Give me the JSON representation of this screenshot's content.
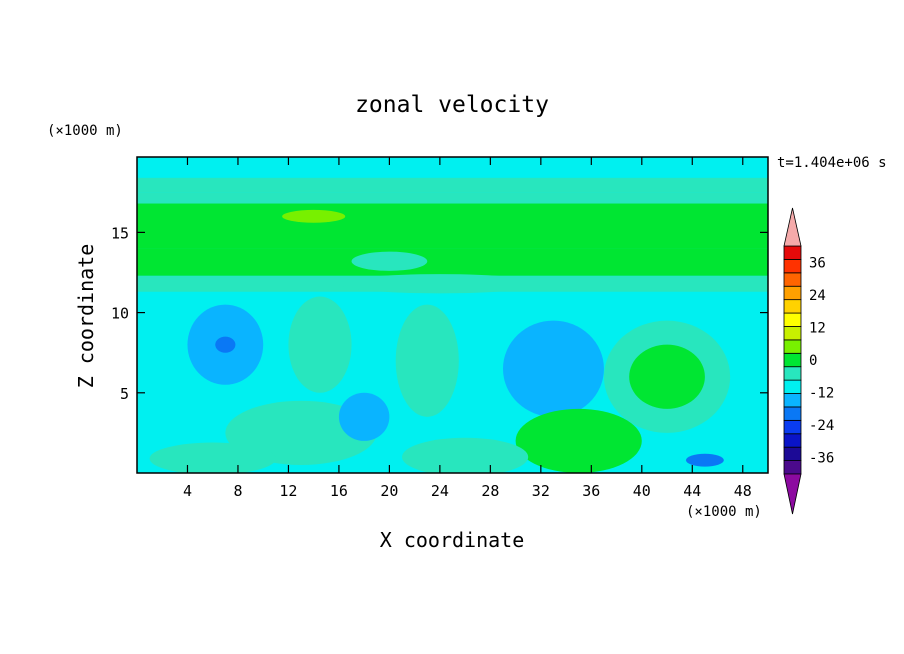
{
  "chart_data": {
    "type": "heatmap",
    "title": "zonal velocity",
    "xlabel": "X coordinate",
    "ylabel": "Z coordinate",
    "x_unit": "(×1000 m)",
    "y_unit": "(×1000 m)",
    "time_label": "t=1.404e+06 s",
    "xlim": [
      0,
      50
    ],
    "ylim": [
      0,
      19.7
    ],
    "x_ticks": [
      4,
      8,
      12,
      16,
      20,
      24,
      28,
      32,
      36,
      40,
      44,
      48
    ],
    "y_ticks": [
      5,
      10,
      15
    ],
    "colorbar": {
      "tick_labels": [
        "36",
        "24",
        "12",
        "0",
        "-12",
        "-24",
        "-36"
      ],
      "tick_values": [
        36,
        24,
        12,
        0,
        -12,
        -24,
        -36
      ],
      "range": [
        -42,
        42
      ],
      "step": 6,
      "colors": [
        "#4b0a8c",
        "#1c0a96",
        "#0a14c8",
        "#0a3cf0",
        "#0a78f5",
        "#0ab4ff",
        "#00f0f0",
        "#28e6be",
        "#00e632",
        "#78f000",
        "#c8f000",
        "#ffff00",
        "#ffd200",
        "#ffa000",
        "#ff6400",
        "#ff3200",
        "#e60a0a"
      ],
      "under_color": "#8c0aa0",
      "over_color": "#f5aaaa"
    },
    "features": [
      {
        "kind": "band",
        "z_range": [
          0,
          19.7
        ],
        "u": -3
      },
      {
        "kind": "band",
        "z_range": [
          11.3,
          12.3
        ],
        "u": 2
      },
      {
        "kind": "band",
        "z_range": [
          12.3,
          14.0
        ],
        "u": 7
      },
      {
        "kind": "band",
        "z_range": [
          14.0,
          16.8
        ],
        "u": 11
      },
      {
        "kind": "band",
        "z_range": [
          16.8,
          17.5
        ],
        "u": 5
      },
      {
        "kind": "band",
        "z_range": [
          17.5,
          18.4
        ],
        "u": 1
      },
      {
        "kind": "blob",
        "x": 14,
        "z": 16.0,
        "rx": 2.5,
        "rz": 0.4,
        "u": 14
      },
      {
        "kind": "blob",
        "x": 20,
        "z": 13.2,
        "rx": 3.0,
        "rz": 0.6,
        "u": 3
      },
      {
        "kind": "blob",
        "x": 24,
        "z": 11.8,
        "rx": 8.0,
        "rz": 0.6,
        "u": 1
      },
      {
        "kind": "blob",
        "x": 7,
        "z": 8.0,
        "rx": 3.0,
        "rz": 2.5,
        "u": -8
      },
      {
        "kind": "blob",
        "x": 7,
        "z": 8.0,
        "rx": 0.8,
        "rz": 0.5,
        "u": -14
      },
      {
        "kind": "blob",
        "x": 14.5,
        "z": 8.0,
        "rx": 2.5,
        "rz": 3.0,
        "u": 3
      },
      {
        "kind": "blob",
        "x": 19.5,
        "z": 8.0,
        "rx": 1.5,
        "rz": 2.5,
        "u": -3
      },
      {
        "kind": "blob",
        "x": 23,
        "z": 7.0,
        "rx": 2.5,
        "rz": 3.5,
        "u": 3
      },
      {
        "kind": "blob",
        "x": 33,
        "z": 6.5,
        "rx": 4.0,
        "rz": 3.0,
        "u": -8
      },
      {
        "kind": "blob",
        "x": 42,
        "z": 6.0,
        "rx": 5.0,
        "rz": 3.5,
        "u": 5
      },
      {
        "kind": "blob",
        "x": 42,
        "z": 6.0,
        "rx": 3.0,
        "rz": 2.0,
        "u": 7
      },
      {
        "kind": "blob",
        "x": 35,
        "z": 2.0,
        "rx": 5.0,
        "rz": 2.0,
        "u": 6
      },
      {
        "kind": "blob",
        "x": 35.5,
        "z": 1.8,
        "rx": 2.0,
        "rz": 1.0,
        "u": 9
      },
      {
        "kind": "blob",
        "x": 13,
        "z": 2.5,
        "rx": 6.0,
        "rz": 2.0,
        "u": 2
      },
      {
        "kind": "blob",
        "x": 6,
        "z": 0.9,
        "rx": 5.0,
        "rz": 1.0,
        "u": 5
      },
      {
        "kind": "blob",
        "x": 18,
        "z": 3.5,
        "rx": 2.0,
        "rz": 1.5,
        "u": -9
      },
      {
        "kind": "blob",
        "x": 45,
        "z": 0.8,
        "rx": 1.5,
        "rz": 0.4,
        "u": -14
      },
      {
        "kind": "blob",
        "x": 26,
        "z": 1.0,
        "rx": 5.0,
        "rz": 1.2,
        "u": 1
      }
    ]
  }
}
